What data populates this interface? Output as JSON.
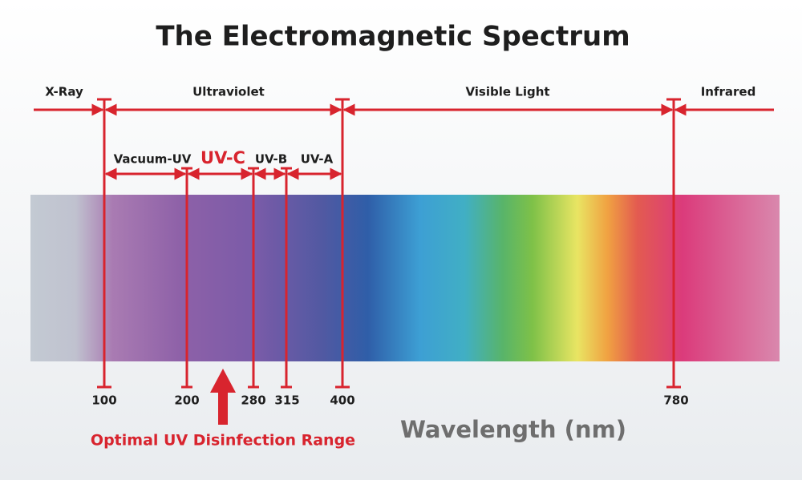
{
  "title": "The Electromagnetic Spectrum",
  "regions": [
    "X-Ray",
    "Ultraviolet",
    "Visible Light",
    "Infrared"
  ],
  "uv_bands": [
    "Vacuum-UV",
    "UV-C",
    "UV-B",
    "UV-A"
  ],
  "wavelength_labels": [
    "100",
    "200",
    "280",
    "315",
    "400",
    "780"
  ],
  "axis_label": "Wavelength (nm)",
  "annotation": "Optimal UV Disinfection Range"
}
